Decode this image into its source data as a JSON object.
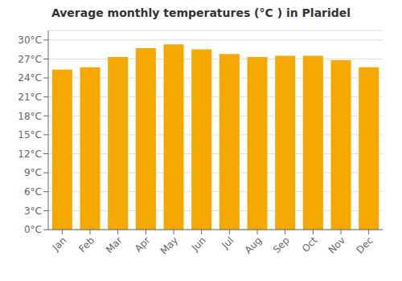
{
  "chart_data": {
    "type": "bar",
    "title": "Average monthly temperatures (°C ) in Plaridel",
    "categories": [
      "Jan",
      "Feb",
      "Mar",
      "Apr",
      "May",
      "Jun",
      "Jul",
      "Aug",
      "Sep",
      "Oct",
      "Nov",
      "Dec"
    ],
    "values": [
      25.3,
      25.7,
      27.3,
      28.7,
      29.3,
      28.5,
      27.8,
      27.3,
      27.5,
      27.5,
      26.8,
      25.7
    ],
    "color": "#F5A800",
    "ylim": [
      0,
      31.5
    ],
    "yticks": [
      {
        "value": 0,
        "label": "0°C"
      },
      {
        "value": 3,
        "label": "3°C"
      },
      {
        "value": 6,
        "label": "6°C"
      },
      {
        "value": 9,
        "label": "9°C"
      },
      {
        "value": 12,
        "label": "12°C"
      },
      {
        "value": 15,
        "label": "15°C"
      },
      {
        "value": 18,
        "label": "18°C"
      },
      {
        "value": 21,
        "label": "21°C"
      },
      {
        "value": 24,
        "label": "24°C"
      },
      {
        "value": 27,
        "label": "27°C"
      },
      {
        "value": 30,
        "label": "30°C"
      }
    ],
    "grid": true
  }
}
